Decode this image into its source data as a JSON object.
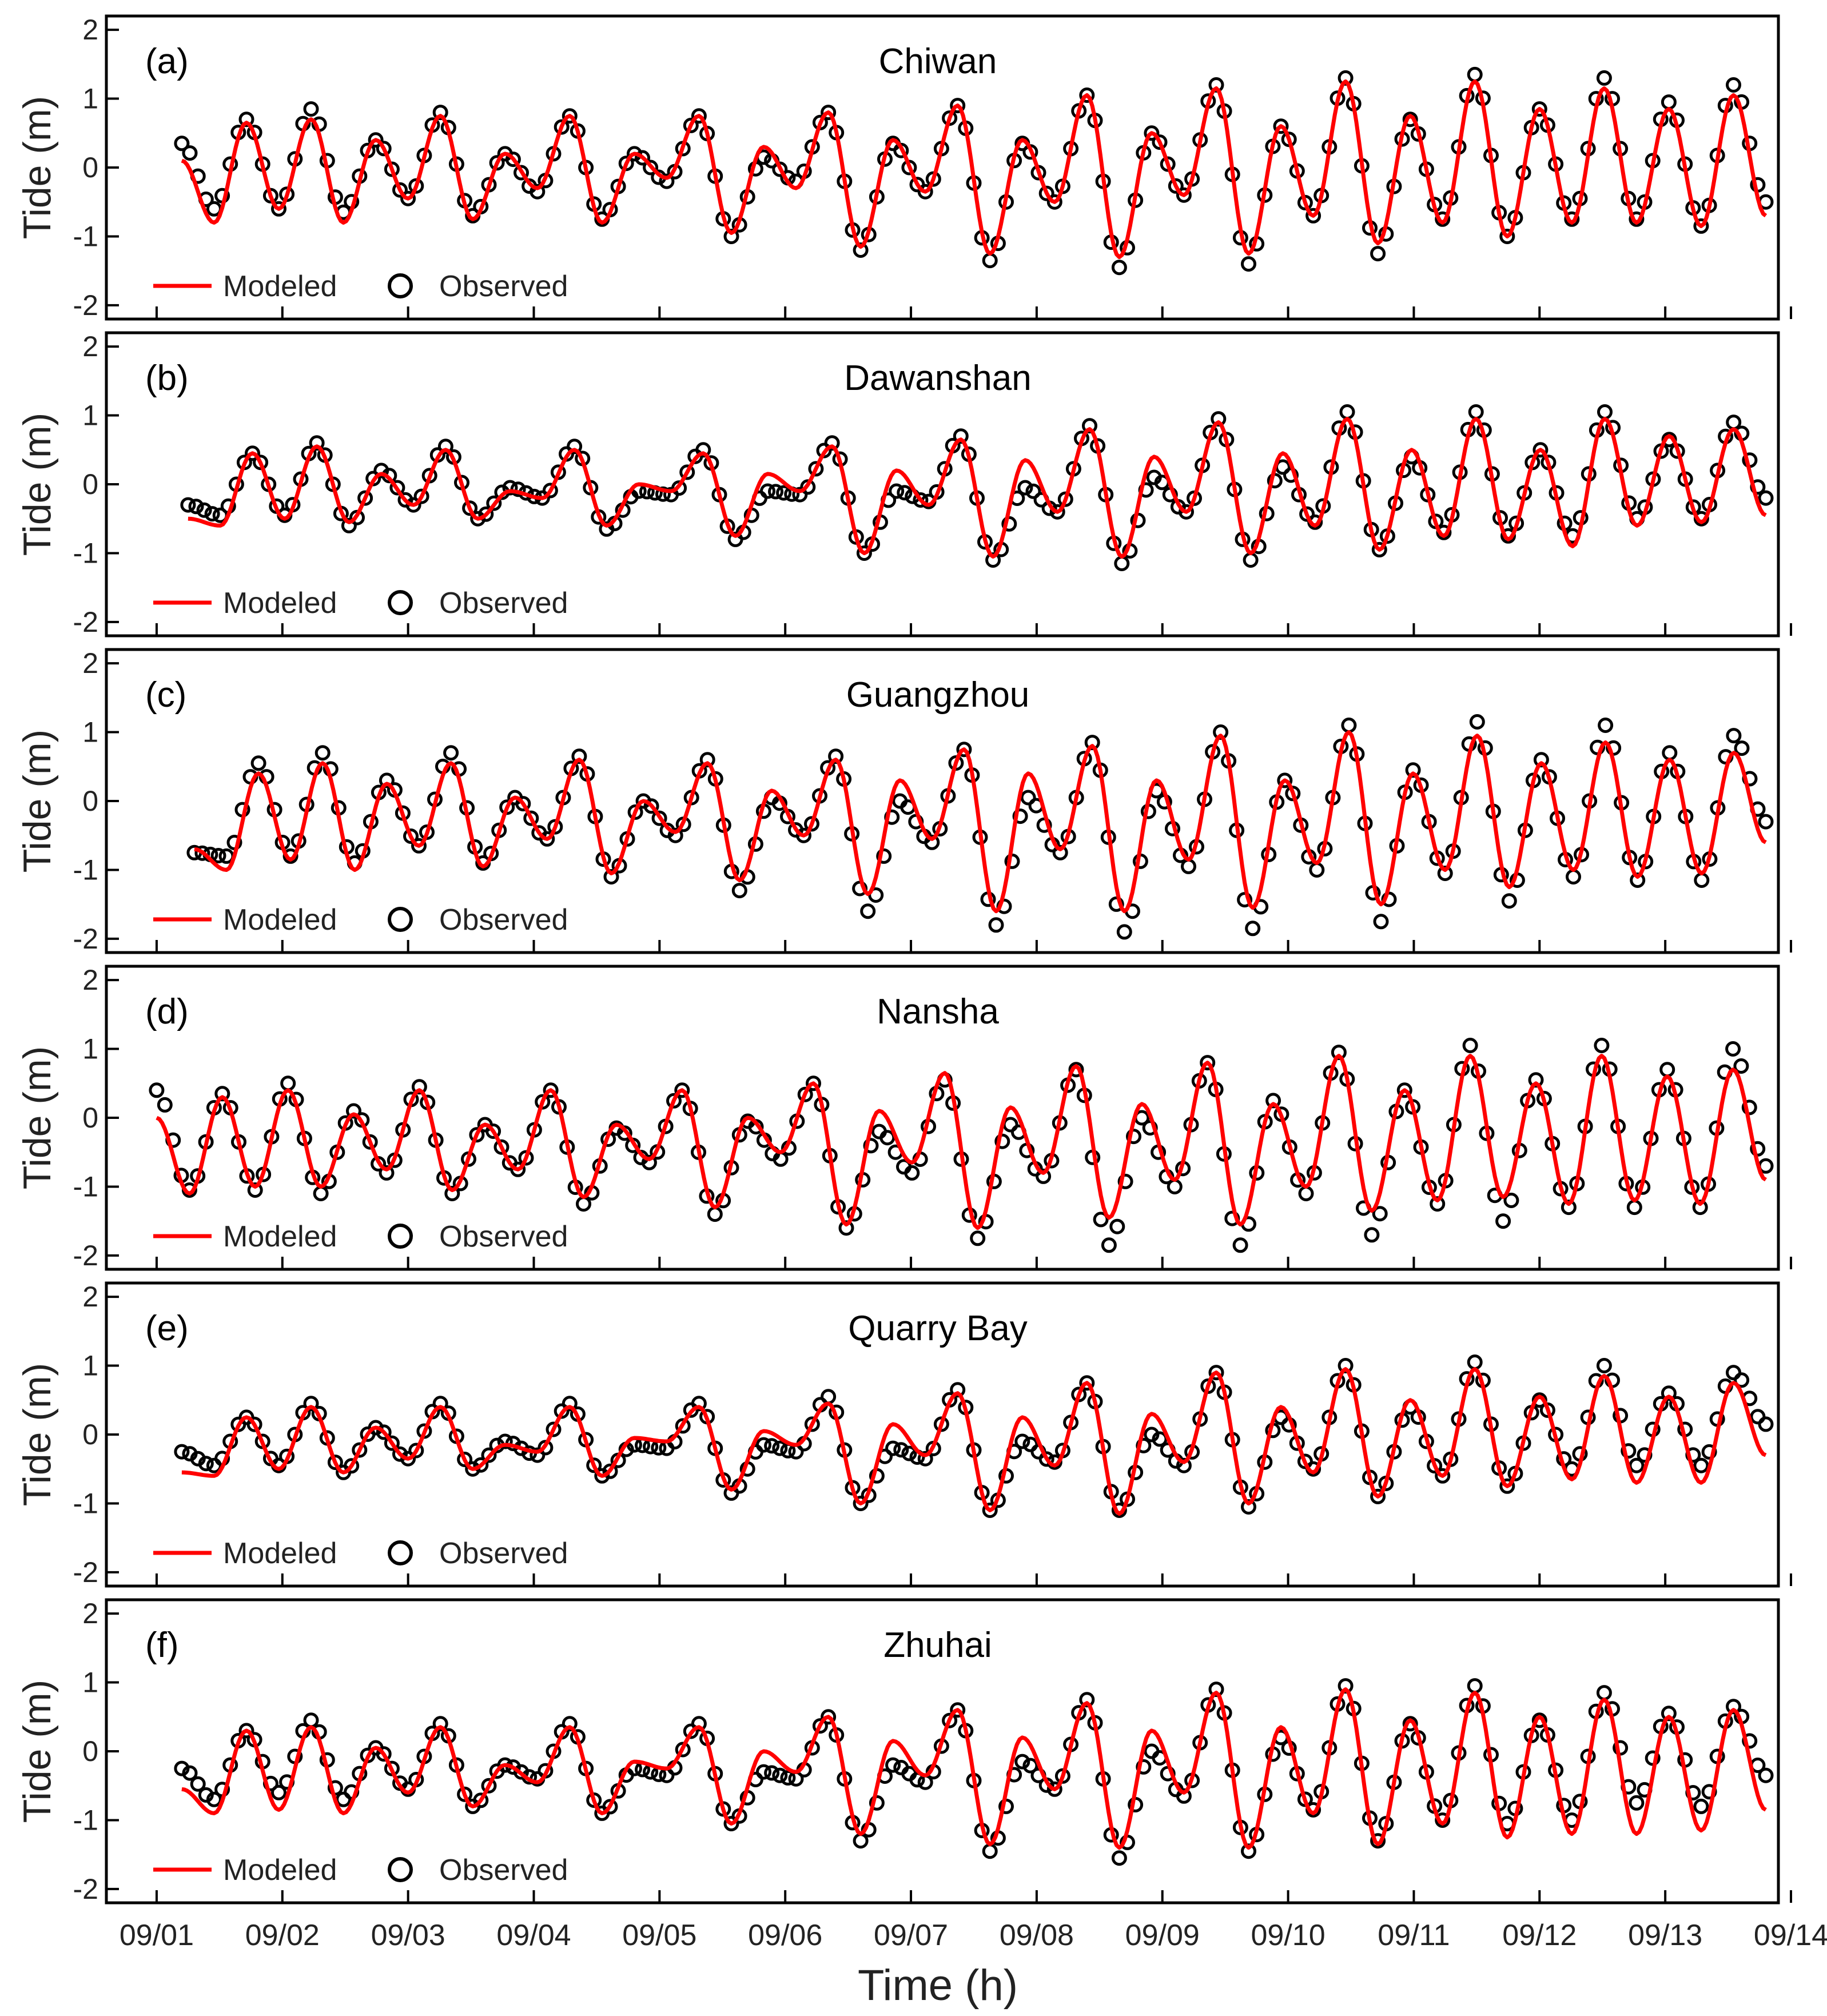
{
  "colors": {
    "modeled": "#ff0000",
    "observed": "#000000",
    "axis": "#000000",
    "text": "#222222"
  },
  "legend": {
    "modeled": "Modeled",
    "observed": "Observed"
  },
  "common": {
    "ylabel": "Tide (m)",
    "xlabel": "Time (h)",
    "xlim": [
      0.6,
      13.9
    ],
    "ylim": [
      -2.2,
      2.2
    ],
    "yticks": [
      -2,
      -1,
      0,
      1,
      2
    ],
    "xticks": [
      {
        "v": 1,
        "label": "09/01"
      },
      {
        "v": 2,
        "label": "09/02"
      },
      {
        "v": 3,
        "label": "09/03"
      },
      {
        "v": 4,
        "label": "09/04"
      },
      {
        "v": 5,
        "label": "09/05"
      },
      {
        "v": 6,
        "label": "09/06"
      },
      {
        "v": 7,
        "label": "09/07"
      },
      {
        "v": 8,
        "label": "09/08"
      },
      {
        "v": 9,
        "label": "09/09"
      },
      {
        "v": 10,
        "label": "09/10"
      },
      {
        "v": 11,
        "label": "09/11"
      },
      {
        "v": 12,
        "label": "09/12"
      },
      {
        "v": 13,
        "label": "09/13"
      },
      {
        "v": 14,
        "label": "09/14"
      }
    ]
  },
  "chart_data": [
    {
      "type": "line",
      "panel": "(a)",
      "title": "Chiwan",
      "x_start": 1.2,
      "x_end": 13.8,
      "series": [
        {
          "name": "Modeled",
          "kind": "line",
          "extrema": [
            0.1,
            -0.8,
            0.65,
            -0.6,
            0.7,
            -0.8,
            0.4,
            -0.45,
            0.75,
            -0.75,
            0.2,
            -0.3,
            0.75,
            -0.8,
            0.2,
            -0.15,
            0.75,
            -0.95,
            0.3,
            -0.3,
            0.8,
            -1.15,
            0.4,
            -0.35,
            0.9,
            -1.25,
            0.4,
            -0.5,
            1.05,
            -1.3,
            0.5,
            -0.4,
            1.15,
            -1.25,
            0.6,
            -0.7,
            1.25,
            -1.1,
            0.75,
            -0.8,
            1.25,
            -1.0,
            0.85,
            -0.8,
            1.15,
            -0.8,
            0.85,
            -0.85,
            1.05,
            -0.7
          ]
        },
        {
          "name": "Observed",
          "kind": "markers",
          "extrema": [
            0.35,
            -0.6,
            0.7,
            -0.6,
            0.85,
            -0.65,
            0.4,
            -0.45,
            0.8,
            -0.7,
            0.2,
            -0.35,
            0.75,
            -0.75,
            0.2,
            -0.2,
            0.75,
            -1.0,
            0.15,
            -0.2,
            0.8,
            -1.2,
            0.35,
            -0.35,
            0.9,
            -1.35,
            0.35,
            -0.5,
            1.05,
            -1.45,
            0.5,
            -0.4,
            1.2,
            -1.4,
            0.6,
            -0.7,
            1.3,
            -1.25,
            0.7,
            -0.75,
            1.35,
            -1.0,
            0.85,
            -0.75,
            1.3,
            -0.75,
            0.95,
            -0.85,
            1.2,
            -0.5
          ]
        }
      ]
    },
    {
      "type": "line",
      "panel": "(b)",
      "title": "Dawanshan",
      "x_start": 1.25,
      "x_end": 13.8,
      "series": [
        {
          "name": "Modeled",
          "kind": "line",
          "extrema": [
            -0.5,
            -0.6,
            0.45,
            -0.5,
            0.55,
            -0.55,
            0.15,
            -0.3,
            0.5,
            -0.5,
            -0.1,
            -0.2,
            0.5,
            -0.6,
            0.0,
            -0.1,
            0.45,
            -0.75,
            0.15,
            -0.1,
            0.55,
            -1.0,
            0.2,
            -0.3,
            0.65,
            -1.05,
            0.35,
            -0.4,
            0.8,
            -1.05,
            0.4,
            -0.4,
            0.9,
            -1.0,
            0.45,
            -0.6,
            0.95,
            -0.95,
            0.5,
            -0.75,
            0.95,
            -0.8,
            0.5,
            -0.9,
            0.95,
            -0.6,
            0.7,
            -0.55,
            0.8,
            -0.45
          ]
        },
        {
          "name": "Observed",
          "kind": "markers",
          "extrema": [
            -0.3,
            -0.45,
            0.45,
            -0.45,
            0.6,
            -0.6,
            0.2,
            -0.3,
            0.55,
            -0.5,
            -0.05,
            -0.2,
            0.55,
            -0.65,
            -0.1,
            -0.15,
            0.5,
            -0.8,
            -0.1,
            -0.15,
            0.6,
            -1.0,
            -0.1,
            -0.25,
            0.7,
            -1.1,
            -0.05,
            -0.4,
            0.85,
            -1.15,
            0.1,
            -0.4,
            0.95,
            -1.1,
            0.25,
            -0.55,
            1.05,
            -0.95,
            0.4,
            -0.7,
            1.05,
            -0.75,
            0.5,
            -0.75,
            1.05,
            -0.5,
            0.65,
            -0.5,
            0.9,
            -0.2
          ]
        }
      ]
    },
    {
      "type": "line",
      "panel": "(c)",
      "title": "Guangzhou",
      "x_start": 1.3,
      "x_end": 13.8,
      "series": [
        {
          "name": "Modeled",
          "kind": "line",
          "extrema": [
            -0.7,
            -1.0,
            0.4,
            -0.85,
            0.55,
            -1.0,
            0.25,
            -0.65,
            0.55,
            -0.95,
            0.05,
            -0.55,
            0.6,
            -1.05,
            0.0,
            -0.45,
            0.55,
            -1.15,
            0.15,
            -0.5,
            0.6,
            -1.35,
            0.3,
            -0.55,
            0.75,
            -1.6,
            0.4,
            -0.7,
            0.8,
            -1.6,
            0.3,
            -0.85,
            0.95,
            -1.55,
            0.3,
            -0.9,
            1.0,
            -1.5,
            0.4,
            -1.0,
            0.95,
            -1.25,
            0.55,
            -1.0,
            0.85,
            -1.1,
            0.6,
            -1.05,
            0.7,
            -0.6
          ]
        },
        {
          "name": "Observed",
          "kind": "markers",
          "extrema": [
            -0.75,
            -0.8,
            0.55,
            -0.8,
            0.7,
            -0.9,
            0.3,
            -0.65,
            0.7,
            -0.9,
            0.05,
            -0.55,
            0.65,
            -1.1,
            0.0,
            -0.5,
            0.6,
            -1.3,
            0.05,
            -0.5,
            0.65,
            -1.6,
            0.0,
            -0.6,
            0.75,
            -1.8,
            0.05,
            -0.75,
            0.85,
            -1.9,
            0.15,
            -0.95,
            1.0,
            -1.85,
            0.3,
            -1.0,
            1.1,
            -1.75,
            0.45,
            -1.05,
            1.15,
            -1.45,
            0.6,
            -1.1,
            1.1,
            -1.15,
            0.7,
            -1.15,
            0.95,
            -0.3
          ]
        }
      ]
    },
    {
      "type": "line",
      "panel": "(d)",
      "title": "Nansha",
      "x_start": 1.0,
      "x_end": 13.8,
      "series": [
        {
          "name": "Modeled",
          "kind": "line",
          "extrema": [
            0.0,
            -1.1,
            0.3,
            -1.0,
            0.4,
            -1.0,
            0.05,
            -0.75,
            0.4,
            -1.05,
            -0.1,
            -0.75,
            0.4,
            -1.15,
            -0.1,
            -0.6,
            0.4,
            -1.3,
            0.0,
            -0.5,
            0.5,
            -1.55,
            0.1,
            -0.65,
            0.65,
            -1.6,
            0.15,
            -0.8,
            0.75,
            -1.45,
            0.2,
            -0.9,
            0.8,
            -1.55,
            0.2,
            -1.0,
            0.9,
            -1.35,
            0.4,
            -1.2,
            0.9,
            -1.15,
            0.5,
            -1.25,
            0.9,
            -1.2,
            0.6,
            -1.25,
            0.7,
            -0.9
          ]
        },
        {
          "name": "Observed",
          "kind": "markers",
          "extrema": [
            0.4,
            -1.05,
            0.35,
            -1.05,
            0.5,
            -1.1,
            0.1,
            -0.8,
            0.45,
            -1.1,
            -0.1,
            -0.75,
            0.4,
            -1.25,
            -0.15,
            -0.65,
            0.4,
            -1.4,
            -0.05,
            -0.6,
            0.5,
            -1.6,
            -0.2,
            -0.8,
            0.55,
            -1.75,
            -0.1,
            -0.85,
            0.7,
            -1.85,
            0.0,
            -1.0,
            0.8,
            -1.85,
            0.25,
            -1.1,
            0.95,
            -1.7,
            0.4,
            -1.25,
            1.05,
            -1.5,
            0.55,
            -1.3,
            1.05,
            -1.3,
            0.7,
            -1.3,
            1.0,
            -0.7
          ]
        }
      ]
    },
    {
      "type": "line",
      "panel": "(e)",
      "title": "Quarry Bay",
      "x_start": 1.2,
      "x_end": 13.8,
      "series": [
        {
          "name": "Modeled",
          "kind": "line",
          "extrema": [
            -0.55,
            -0.6,
            0.25,
            -0.5,
            0.4,
            -0.55,
            0.1,
            -0.35,
            0.4,
            -0.5,
            -0.15,
            -0.25,
            0.4,
            -0.6,
            -0.05,
            -0.1,
            0.4,
            -0.8,
            0.05,
            -0.15,
            0.45,
            -1.0,
            0.15,
            -0.3,
            0.6,
            -1.1,
            0.25,
            -0.45,
            0.75,
            -1.15,
            0.3,
            -0.4,
            0.9,
            -1.0,
            0.4,
            -0.55,
            0.95,
            -0.9,
            0.5,
            -0.6,
            0.95,
            -0.75,
            0.55,
            -0.65,
            0.85,
            -0.7,
            0.55,
            -0.7,
            0.75,
            -0.3
          ]
        },
        {
          "name": "Observed",
          "kind": "markers",
          "extrema": [
            -0.25,
            -0.45,
            0.25,
            -0.45,
            0.45,
            -0.55,
            0.1,
            -0.35,
            0.45,
            -0.5,
            -0.1,
            -0.3,
            0.45,
            -0.6,
            -0.15,
            -0.2,
            0.45,
            -0.85,
            -0.15,
            -0.25,
            0.55,
            -1.0,
            -0.2,
            -0.35,
            0.65,
            -1.1,
            -0.1,
            -0.4,
            0.75,
            -1.1,
            0.0,
            -0.45,
            0.9,
            -1.05,
            0.25,
            -0.5,
            1.0,
            -0.9,
            0.4,
            -0.6,
            1.05,
            -0.75,
            0.5,
            -0.5,
            1.0,
            -0.45,
            0.6,
            -0.45,
            0.9,
            0.15
          ]
        }
      ]
    },
    {
      "type": "line",
      "panel": "(f)",
      "title": "Zhuhai",
      "x_start": 1.2,
      "x_end": 13.8,
      "series": [
        {
          "name": "Modeled",
          "kind": "line",
          "extrema": [
            -0.55,
            -0.9,
            0.3,
            -0.85,
            0.35,
            -0.9,
            0.05,
            -0.6,
            0.35,
            -0.8,
            -0.2,
            -0.45,
            0.35,
            -0.9,
            -0.15,
            -0.25,
            0.35,
            -1.05,
            0.0,
            -0.3,
            0.5,
            -1.2,
            0.15,
            -0.35,
            0.6,
            -1.35,
            0.2,
            -0.55,
            0.7,
            -1.4,
            0.3,
            -0.6,
            0.85,
            -1.4,
            0.35,
            -0.9,
            0.9,
            -1.35,
            0.45,
            -1.05,
            0.85,
            -1.25,
            0.5,
            -1.2,
            0.75,
            -1.2,
            0.5,
            -1.15,
            0.6,
            -0.85
          ]
        },
        {
          "name": "Observed",
          "kind": "markers",
          "extrema": [
            -0.25,
            -0.7,
            0.3,
            -0.6,
            0.45,
            -0.7,
            0.05,
            -0.55,
            0.4,
            -0.8,
            -0.2,
            -0.4,
            0.4,
            -0.9,
            -0.25,
            -0.35,
            0.4,
            -1.05,
            -0.3,
            -0.4,
            0.5,
            -1.3,
            -0.2,
            -0.45,
            0.6,
            -1.45,
            -0.15,
            -0.55,
            0.75,
            -1.55,
            0.0,
            -0.65,
            0.9,
            -1.45,
            0.2,
            -0.85,
            0.95,
            -1.3,
            0.4,
            -1.0,
            0.95,
            -1.05,
            0.45,
            -1.0,
            0.85,
            -0.75,
            0.55,
            -0.8,
            0.65,
            -0.35
          ]
        }
      ]
    }
  ]
}
